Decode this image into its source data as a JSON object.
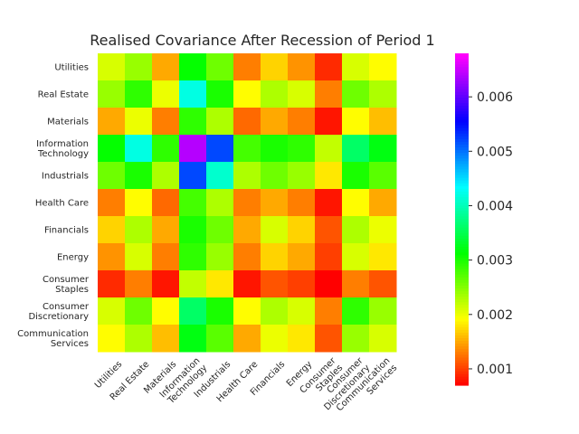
{
  "chart_data": {
    "type": "heatmap",
    "title": "Realised Covariance After Recession of Period 1",
    "row_labels": [
      [
        "Utilities"
      ],
      [
        "Real Estate"
      ],
      [
        "Materials"
      ],
      [
        "Information",
        "Technology"
      ],
      [
        "Industrials"
      ],
      [
        "Health Care"
      ],
      [
        "Financials"
      ],
      [
        "Energy"
      ],
      [
        "Consumer",
        "Staples"
      ],
      [
        "Consumer",
        "Discretionary"
      ],
      [
        "Communication",
        "Services"
      ]
    ],
    "col_labels": [
      [
        "Utilities"
      ],
      [
        "Real Estate"
      ],
      [
        "Materials"
      ],
      [
        "Information",
        "Technology"
      ],
      [
        "Industrials"
      ],
      [
        "Health Care"
      ],
      [
        "Financials"
      ],
      [
        "Energy"
      ],
      [
        "Consumer",
        "Staples"
      ],
      [
        "Consumer",
        "Discretionary"
      ],
      [
        "Communication",
        "Services"
      ]
    ],
    "values": [
      [
        0.0021,
        0.0024,
        0.0015,
        0.0031,
        0.0026,
        0.0013,
        0.0017,
        0.0014,
        0.0009,
        0.0021,
        0.0019
      ],
      [
        0.0024,
        0.0029,
        0.002,
        0.0042,
        0.003,
        0.0019,
        0.0023,
        0.0021,
        0.0013,
        0.0026,
        0.0023
      ],
      [
        0.0015,
        0.002,
        0.0013,
        0.0029,
        0.0023,
        0.0012,
        0.0015,
        0.0013,
        0.0008,
        0.0019,
        0.0016
      ],
      [
        0.0031,
        0.0042,
        0.0029,
        0.0064,
        0.0052,
        0.0028,
        0.003,
        0.0029,
        0.0022,
        0.0036,
        0.0032
      ],
      [
        0.0026,
        0.003,
        0.0023,
        0.0052,
        0.0041,
        0.0023,
        0.0026,
        0.0024,
        0.0018,
        0.003,
        0.0027
      ],
      [
        0.0013,
        0.0019,
        0.0012,
        0.0028,
        0.0023,
        0.0013,
        0.0015,
        0.0013,
        0.0008,
        0.0019,
        0.0015
      ],
      [
        0.0017,
        0.0023,
        0.0015,
        0.003,
        0.0026,
        0.0015,
        0.0021,
        0.0017,
        0.0011,
        0.0023,
        0.002
      ],
      [
        0.0014,
        0.0021,
        0.0013,
        0.0029,
        0.0024,
        0.0013,
        0.0017,
        0.0015,
        0.001,
        0.0021,
        0.0018
      ],
      [
        0.0009,
        0.0013,
        0.0008,
        0.0022,
        0.0018,
        0.0008,
        0.0011,
        0.001,
        0.0007,
        0.0013,
        0.0011
      ],
      [
        0.0021,
        0.0026,
        0.0019,
        0.0036,
        0.003,
        0.0019,
        0.0023,
        0.0021,
        0.0013,
        0.0029,
        0.0024
      ],
      [
        0.0019,
        0.0023,
        0.0016,
        0.0032,
        0.0027,
        0.0015,
        0.002,
        0.0018,
        0.0011,
        0.0024,
        0.0021
      ]
    ],
    "colorbar": {
      "colormap": "gist_rainbow",
      "vmin": 0.0007,
      "vmax": 0.0068,
      "ticks": [
        0.001,
        0.002,
        0.003,
        0.004,
        0.005,
        0.006
      ],
      "tick_labels": [
        "0.001",
        "0.002",
        "0.003",
        "0.004",
        "0.005",
        "0.006"
      ]
    },
    "grid": false
  }
}
